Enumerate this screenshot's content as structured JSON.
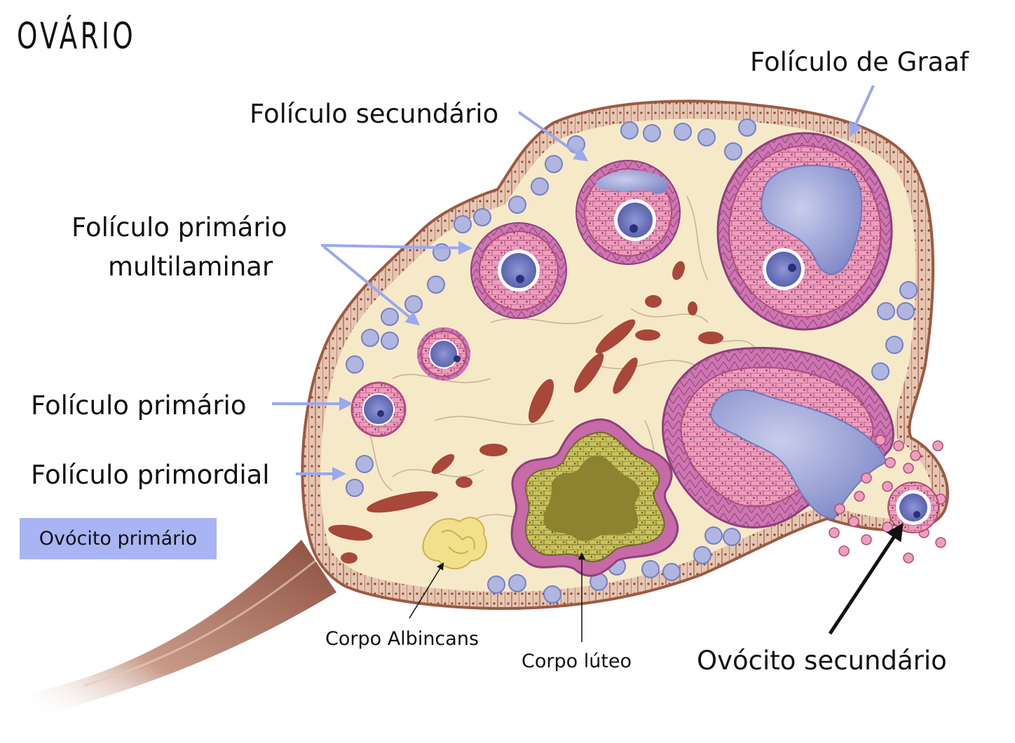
{
  "title": "OVÁRIO",
  "labels": {
    "graaf": "Folículo de Graaf",
    "secundario": "Folículo secundário",
    "primario_multi_1": "Folículo primário",
    "primario_multi_2": "multilaminar",
    "primario": "Folículo primário",
    "primordial": "Folículo primordial",
    "ovocito_primario": "Ovócito primário",
    "corpo_albincans": "Corpo Albincans",
    "corpo_luteo": "Corpo lúteo",
    "ovocito_secundario": "Ovócito secundário"
  },
  "colors": {
    "stroma": "#f6e9c8",
    "capsule": "#b97a5c",
    "granulosa": "#e58aaa",
    "theca": "#c66aa8",
    "oocyte": "#6f7ac2",
    "antrum": "#9ea6d6",
    "arrow_blue": "#9aa8ef",
    "luteum": "#a9a24a",
    "albicans": "#f2e08a",
    "vessel": "#a8473a",
    "ligament": "#9c5e4c"
  }
}
